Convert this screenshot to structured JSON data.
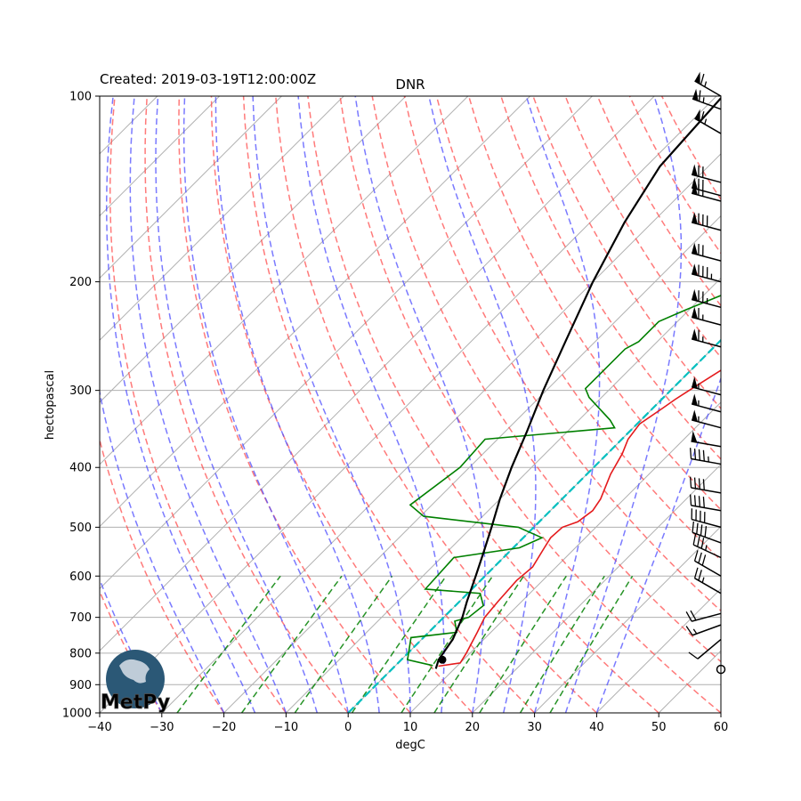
{
  "created_label": "Created: 2019-03-19T12:00:00Z",
  "chart_data": {
    "type": "line",
    "title": "DNR",
    "xlabel": "degC",
    "ylabel": "hectopascal",
    "xlim": [
      -40,
      60
    ],
    "ylim": [
      1000,
      100
    ],
    "y_scale": "log",
    "x_ticks": [
      -40,
      -30,
      -20,
      -10,
      0,
      10,
      20,
      30,
      40,
      50,
      60
    ],
    "y_ticks": [
      100,
      200,
      300,
      400,
      500,
      600,
      700,
      800,
      900,
      1000
    ],
    "grid": true,
    "skew": 30,
    "series": [
      {
        "role": "temperature",
        "color": "#e41a1c",
        "points": [
          [
            7.0,
            840
          ],
          [
            10.0,
            830
          ],
          [
            9.4,
            800
          ],
          [
            7.8,
            740
          ],
          [
            6.6,
            700
          ],
          [
            6.2,
            660
          ],
          [
            5.8,
            610
          ],
          [
            6.2,
            580
          ],
          [
            5.0,
            540
          ],
          [
            4.4,
            520
          ],
          [
            4.6,
            500
          ],
          [
            6.2,
            490
          ],
          [
            6.8,
            470
          ],
          [
            6.2,
            450
          ],
          [
            3.8,
            410
          ],
          [
            2.4,
            380
          ],
          [
            1.0,
            360
          ],
          [
            0.4,
            340
          ],
          [
            1.6,
            320
          ],
          [
            2.2,
            310
          ],
          [
            3.4,
            295
          ],
          [
            5.6,
            270
          ],
          [
            8.8,
            247
          ],
          [
            11.8,
            236
          ],
          [
            14.6,
            228
          ],
          [
            22.6,
            210
          ],
          [
            28.0,
            178
          ],
          [
            28.0,
            163
          ],
          [
            29.6,
            155
          ],
          [
            40.0,
            100
          ]
        ]
      },
      {
        "role": "dewpoint",
        "color": "#008000",
        "points": [
          [
            6.0,
            838
          ],
          [
            1.0,
            820
          ],
          [
            -2.0,
            755
          ],
          [
            4.5,
            740
          ],
          [
            2.4,
            710
          ],
          [
            4.0,
            700
          ],
          [
            4.5,
            670
          ],
          [
            2.0,
            640
          ],
          [
            -7.5,
            630
          ],
          [
            -8.0,
            560
          ],
          [
            1.0,
            540
          ],
          [
            3.0,
            520
          ],
          [
            -2.5,
            500
          ],
          [
            -19.5,
            480
          ],
          [
            -23.5,
            460
          ],
          [
            -21.5,
            400
          ],
          [
            -22.0,
            360
          ],
          [
            -3.0,
            345
          ],
          [
            -5.0,
            335
          ],
          [
            -12.0,
            308
          ],
          [
            -14.0,
            298
          ],
          [
            -14.0,
            257
          ],
          [
            -13.0,
            250
          ],
          [
            -13.0,
            232
          ],
          [
            -10.5,
            222
          ],
          [
            -4.0,
            200
          ],
          [
            1.0,
            180
          ],
          [
            3.0,
            160
          ],
          [
            0.0,
            140
          ],
          [
            10.0,
            100
          ]
        ]
      },
      {
        "role": "parcel",
        "color": "#000000",
        "points": [
          [
            7.0,
            848
          ],
          [
            6.0,
            820
          ],
          [
            5.0,
            760
          ],
          [
            3.0,
            700
          ],
          [
            1.2,
            660
          ],
          [
            -1.5,
            600
          ],
          [
            -4.0,
            550
          ],
          [
            -6.8,
            500
          ],
          [
            -10.0,
            450
          ],
          [
            -13.2,
            400
          ],
          [
            -16.5,
            350
          ],
          [
            -20.5,
            300
          ],
          [
            -24.8,
            250
          ],
          [
            -30.0,
            200
          ],
          [
            -34.5,
            160
          ],
          [
            -37.8,
            130
          ],
          [
            -39.0,
            100
          ]
        ]
      }
    ],
    "lcl": {
      "temperature": 6.6,
      "pressure": 820
    },
    "reference_lines": {
      "isotherm_0C": {
        "color": "#00bfbf",
        "x": 0
      },
      "dry_adiabats_theta_C": [
        -30,
        -20,
        -10,
        0,
        10,
        20,
        30,
        40,
        50,
        60,
        70,
        80,
        90,
        100,
        110,
        120,
        130,
        140,
        150,
        160
      ],
      "moist_adiabats_start_C": [
        -30,
        -20,
        -15,
        -10,
        -5,
        0,
        5,
        10,
        15,
        20,
        25,
        30,
        35,
        40
      ],
      "mixing_ratios": [
        0.0004,
        0.001,
        0.002,
        0.004,
        0.007,
        0.01,
        0.016,
        0.024,
        0.032
      ],
      "colors": {
        "dry": "#ff4d4d",
        "moist": "#4d4dff",
        "mixing": "#008000"
      }
    },
    "wind_barbs": {
      "x_position": 60,
      "barbs": [
        {
          "p": 100,
          "speed": 65,
          "direction": 300
        },
        {
          "p": 105,
          "speed": 65,
          "direction": 290
        },
        {
          "p": 115,
          "speed": 65,
          "direction": 300
        },
        {
          "p": 138,
          "speed": 70,
          "direction": 285
        },
        {
          "p": 145,
          "speed": 70,
          "direction": 285
        },
        {
          "p": 148,
          "speed": 65,
          "direction": 285
        },
        {
          "p": 165,
          "speed": 80,
          "direction": 285
        },
        {
          "p": 185,
          "speed": 70,
          "direction": 285
        },
        {
          "p": 200,
          "speed": 85,
          "direction": 285
        },
        {
          "p": 220,
          "speed": 75,
          "direction": 285
        },
        {
          "p": 235,
          "speed": 65,
          "direction": 285
        },
        {
          "p": 255,
          "speed": 65,
          "direction": 285
        },
        {
          "p": 305,
          "speed": 55,
          "direction": 285
        },
        {
          "p": 325,
          "speed": 55,
          "direction": 285
        },
        {
          "p": 345,
          "speed": 55,
          "direction": 285
        },
        {
          "p": 370,
          "speed": 50,
          "direction": 280
        },
        {
          "p": 395,
          "speed": 45,
          "direction": 280
        },
        {
          "p": 440,
          "speed": 40,
          "direction": 280
        },
        {
          "p": 470,
          "speed": 40,
          "direction": 280
        },
        {
          "p": 500,
          "speed": 40,
          "direction": 285
        },
        {
          "p": 530,
          "speed": 40,
          "direction": 290
        },
        {
          "p": 560,
          "speed": 35,
          "direction": 295
        },
        {
          "p": 600,
          "speed": 30,
          "direction": 300
        },
        {
          "p": 640,
          "speed": 25,
          "direction": 300
        },
        {
          "p": 690,
          "speed": 20,
          "direction": 255
        },
        {
          "p": 720,
          "speed": 15,
          "direction": 250
        },
        {
          "p": 760,
          "speed": 10,
          "direction": 230
        },
        {
          "p": 850,
          "speed": 0,
          "direction": 0
        }
      ]
    }
  },
  "logo": {
    "text": "MetPy",
    "globe_color": "#2b5876"
  }
}
